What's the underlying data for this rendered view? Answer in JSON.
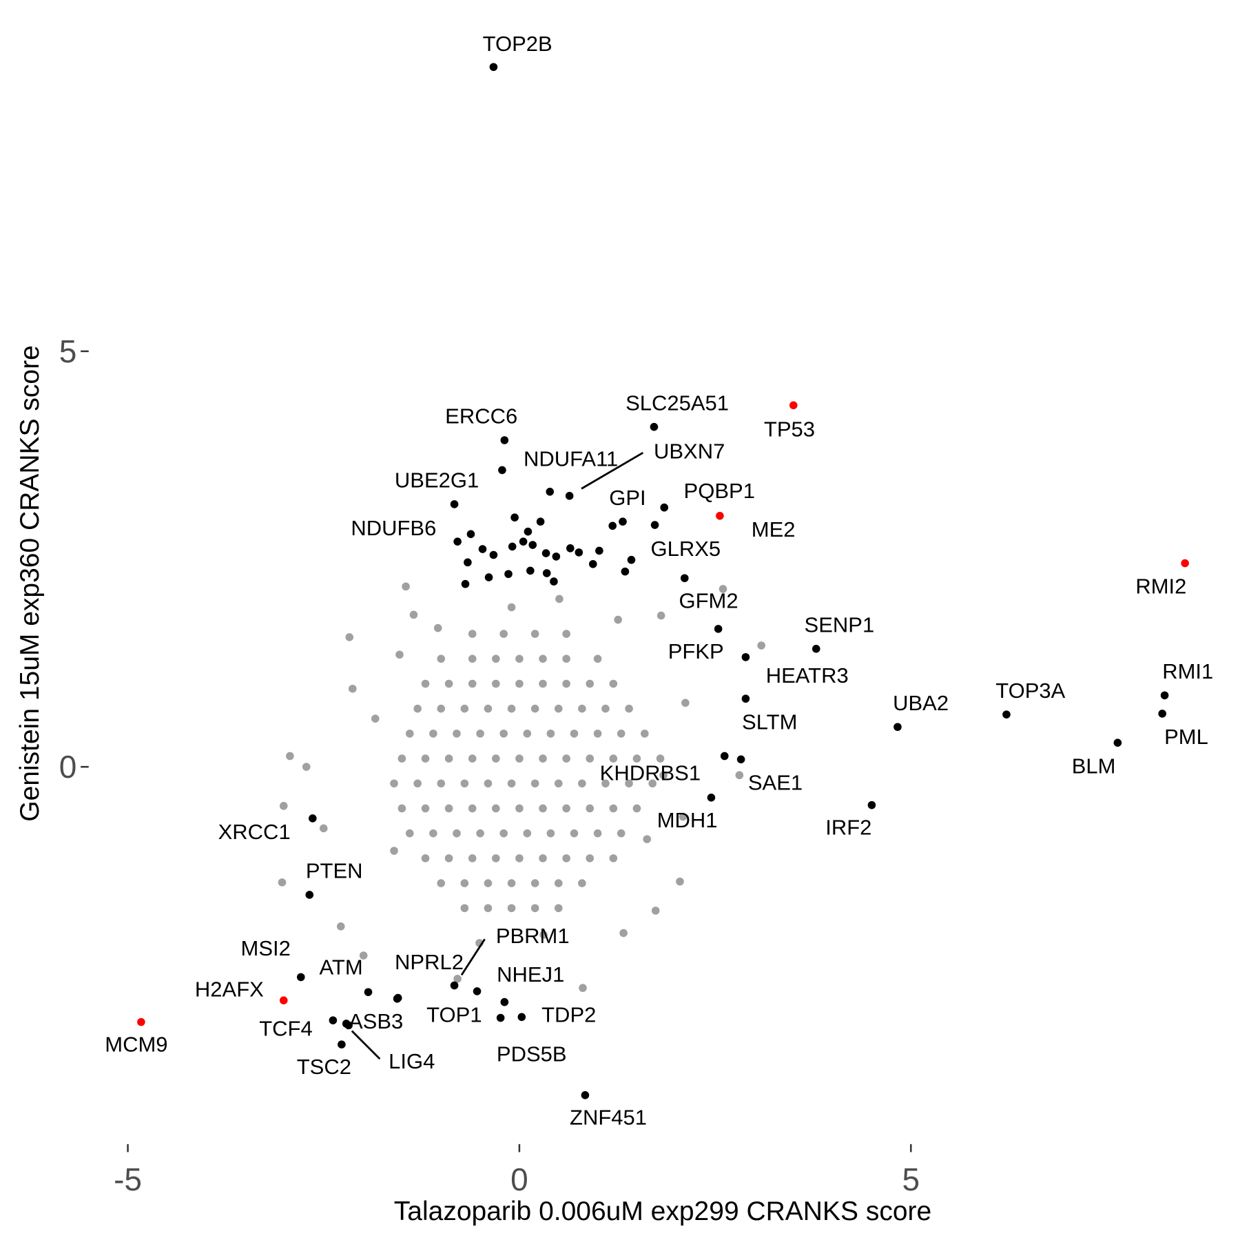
{
  "chart_data": {
    "type": "scatter",
    "xlabel": "Talazoparib 0.006uM exp299 CRANKS score",
    "ylabel": "Genistein 15uM exp360 CRANKS score",
    "xlim": [
      -5.51,
      9.08
    ],
    "ylim": [
      -4.52,
      9.13
    ],
    "xticks": [
      -5,
      0,
      5
    ],
    "yticks": [
      0,
      5
    ],
    "grid": false,
    "series": [
      {
        "color": "#a0a0a0",
        "x": [
          -0.6,
          -0.2,
          0.2,
          0.6,
          -1.0,
          -0.6,
          -0.3,
          0.0,
          0.3,
          0.6,
          1.0,
          -1.2,
          -0.9,
          -0.6,
          -0.3,
          0.0,
          0.3,
          0.6,
          0.9,
          1.2,
          -1.3,
          -1.0,
          -0.7,
          -0.4,
          -0.1,
          0.2,
          0.5,
          0.8,
          1.1,
          1.4,
          -1.4,
          -1.1,
          -0.8,
          -0.5,
          -0.2,
          0.1,
          0.4,
          0.7,
          1.0,
          1.3,
          1.6,
          -1.5,
          -1.2,
          -0.9,
          -0.6,
          -0.3,
          0.0,
          0.3,
          0.6,
          0.9,
          1.2,
          1.5,
          1.8,
          -1.6,
          -1.3,
          -1.0,
          -0.7,
          -0.4,
          -0.1,
          0.2,
          0.5,
          0.8,
          1.1,
          1.4,
          1.7,
          -1.5,
          -1.2,
          -0.9,
          -0.6,
          -0.3,
          0.0,
          0.3,
          0.6,
          0.9,
          1.2,
          1.5,
          -1.4,
          -1.1,
          -0.8,
          -0.5,
          -0.2,
          0.1,
          0.4,
          0.7,
          1.0,
          1.3,
          -1.2,
          -0.9,
          -0.6,
          -0.3,
          0.0,
          0.3,
          0.6,
          0.9,
          1.2,
          -1.0,
          -0.7,
          -0.4,
          -0.1,
          0.2,
          0.5,
          0.8,
          -0.7,
          -0.4,
          -0.1,
          0.2,
          0.5,
          -2.17,
          -2.13,
          -2.93,
          -2.72,
          -3.01,
          -2.5,
          -3.03,
          -2.28,
          -1.99,
          -0.79,
          0.81,
          1.33,
          1.74,
          2.05,
          2.09,
          1.84,
          2.12,
          3.09,
          2.6,
          1.81,
          1.26,
          -1.45,
          -1.35,
          -1.04,
          2.81,
          -1.6,
          -1.84,
          -1.53,
          -0.1,
          0.51,
          1.63,
          -0.51,
          0.31
        ],
        "y": [
          1.6,
          1.6,
          1.6,
          1.6,
          1.3,
          1.3,
          1.3,
          1.3,
          1.3,
          1.3,
          1.3,
          1.0,
          1.0,
          1.0,
          1.0,
          1.0,
          1.0,
          1.0,
          1.0,
          1.0,
          0.7,
          0.7,
          0.7,
          0.7,
          0.7,
          0.7,
          0.7,
          0.7,
          0.7,
          0.7,
          0.4,
          0.4,
          0.4,
          0.4,
          0.4,
          0.4,
          0.4,
          0.4,
          0.4,
          0.4,
          0.4,
          0.1,
          0.1,
          0.1,
          0.1,
          0.1,
          0.1,
          0.1,
          0.1,
          0.1,
          0.1,
          0.1,
          0.1,
          -0.2,
          -0.2,
          -0.2,
          -0.2,
          -0.2,
          -0.2,
          -0.2,
          -0.2,
          -0.2,
          -0.2,
          -0.2,
          -0.2,
          -0.5,
          -0.5,
          -0.5,
          -0.5,
          -0.5,
          -0.5,
          -0.5,
          -0.5,
          -0.5,
          -0.5,
          -0.5,
          -0.8,
          -0.8,
          -0.8,
          -0.8,
          -0.8,
          -0.8,
          -0.8,
          -0.8,
          -0.8,
          -0.8,
          -1.1,
          -1.1,
          -1.1,
          -1.1,
          -1.1,
          -1.1,
          -1.1,
          -1.1,
          -1.1,
          -1.4,
          -1.4,
          -1.4,
          -1.4,
          -1.4,
          -1.4,
          -1.4,
          -1.7,
          -1.7,
          -1.7,
          -1.7,
          -1.7,
          1.56,
          0.94,
          0.13,
          0,
          -0.47,
          -0.74,
          -1.39,
          -1.92,
          -2.27,
          -2.55,
          -2.66,
          -2.0,
          -1.73,
          -1.38,
          -0.6,
          -0.1,
          0.77,
          1.46,
          2.14,
          1.82,
          1.77,
          2.17,
          1.83,
          1.67,
          -0.1,
          -1.01,
          0.58,
          1.35,
          1.92,
          2.02,
          -0.87,
          -2.12,
          -2.02
        ]
      },
      {
        "color": "#000000",
        "x": [
          -0.33,
          -0.19,
          1.72,
          -0.22,
          0.64,
          -0.83,
          1.32,
          1.85,
          -0.79,
          1.43,
          2.11,
          3.79,
          2.54,
          2.89,
          2.89,
          4.83,
          6.22,
          8.24,
          8.21,
          7.64,
          2.62,
          2.83,
          2.45,
          4.5,
          -2.64,
          -2.68,
          -0.83,
          -1.56,
          -0.54,
          -1.93,
          -2.79,
          -2.38,
          -2.21,
          -2.18,
          -2.27,
          -0.24,
          0.03,
          -0.19,
          0.84,
          0.39,
          -0.06,
          0.27,
          -0.62,
          0.11,
          -0.47,
          -0.33,
          -0.09,
          0.05,
          0.17,
          0.34,
          0.47,
          0.65,
          0.76,
          1.02,
          -0.66,
          -0.69,
          -0.39,
          -0.14,
          0.14,
          0.35,
          0.44,
          0.94,
          1.19,
          1.73,
          1.35,
          -1.55
        ],
        "y": [
          8.42,
          3.93,
          4.09,
          3.57,
          3.26,
          3.16,
          2.95,
          3.12,
          2.71,
          2.49,
          2.27,
          1.42,
          1.66,
          1.32,
          0.82,
          0.48,
          0.63,
          0.86,
          0.64,
          0.29,
          0.13,
          0.09,
          -0.37,
          -0.46,
          -0.62,
          -1.54,
          -2.63,
          -2.79,
          -2.7,
          -2.71,
          -2.53,
          -3.05,
          -3.09,
          -3.11,
          -3.34,
          -3.02,
          -3.01,
          -2.83,
          -3.95,
          3.31,
          3.0,
          2.95,
          2.8,
          2.83,
          2.62,
          2.55,
          2.65,
          2.71,
          2.67,
          2.57,
          2.53,
          2.63,
          2.58,
          2.6,
          2.46,
          2.2,
          2.28,
          2.32,
          2.36,
          2.33,
          2.23,
          2.44,
          2.9,
          2.91,
          2.35,
          -2.78
        ],
        "labels": [
          "TOP2B",
          "ERCC6",
          "SLC25A51",
          "NDUFA11",
          "UBXN7",
          "UBE2G1",
          "GPI",
          "PQBP1",
          "NDUFB6",
          "GLRX5",
          "GFM2",
          "SENP1",
          "PFKP",
          "HEATR3",
          "SLTM",
          "UBA2",
          "TOP3A",
          "RMI1",
          "PML",
          "BLM",
          "KHDRBS1",
          "SAE1",
          "MDH1",
          "IRF2",
          "XRCC1",
          "PTEN",
          "PBRM1",
          "NPRL2",
          "NHEJ1",
          "ATM",
          "MSI2",
          "TCF4",
          "ASB3",
          "LIG4",
          "TSC2",
          "TOP1",
          "TDP2",
          "PDS5B",
          "ZNF451",
          null,
          null,
          null,
          null,
          null,
          null,
          null,
          null,
          null,
          null,
          null,
          null,
          null,
          null,
          null,
          null,
          null,
          null,
          null,
          null,
          null,
          null,
          null,
          null,
          null,
          null,
          null
        ]
      },
      {
        "color": "#ff0000",
        "x": [
          3.5,
          2.56,
          8.5,
          -3.01,
          -4.83
        ],
        "y": [
          4.35,
          3.02,
          2.45,
          -2.81,
          -3.07
        ],
        "labels": [
          "TP53",
          "ME2",
          "RMI2",
          "H2AFX",
          "MCM9"
        ]
      }
    ]
  }
}
